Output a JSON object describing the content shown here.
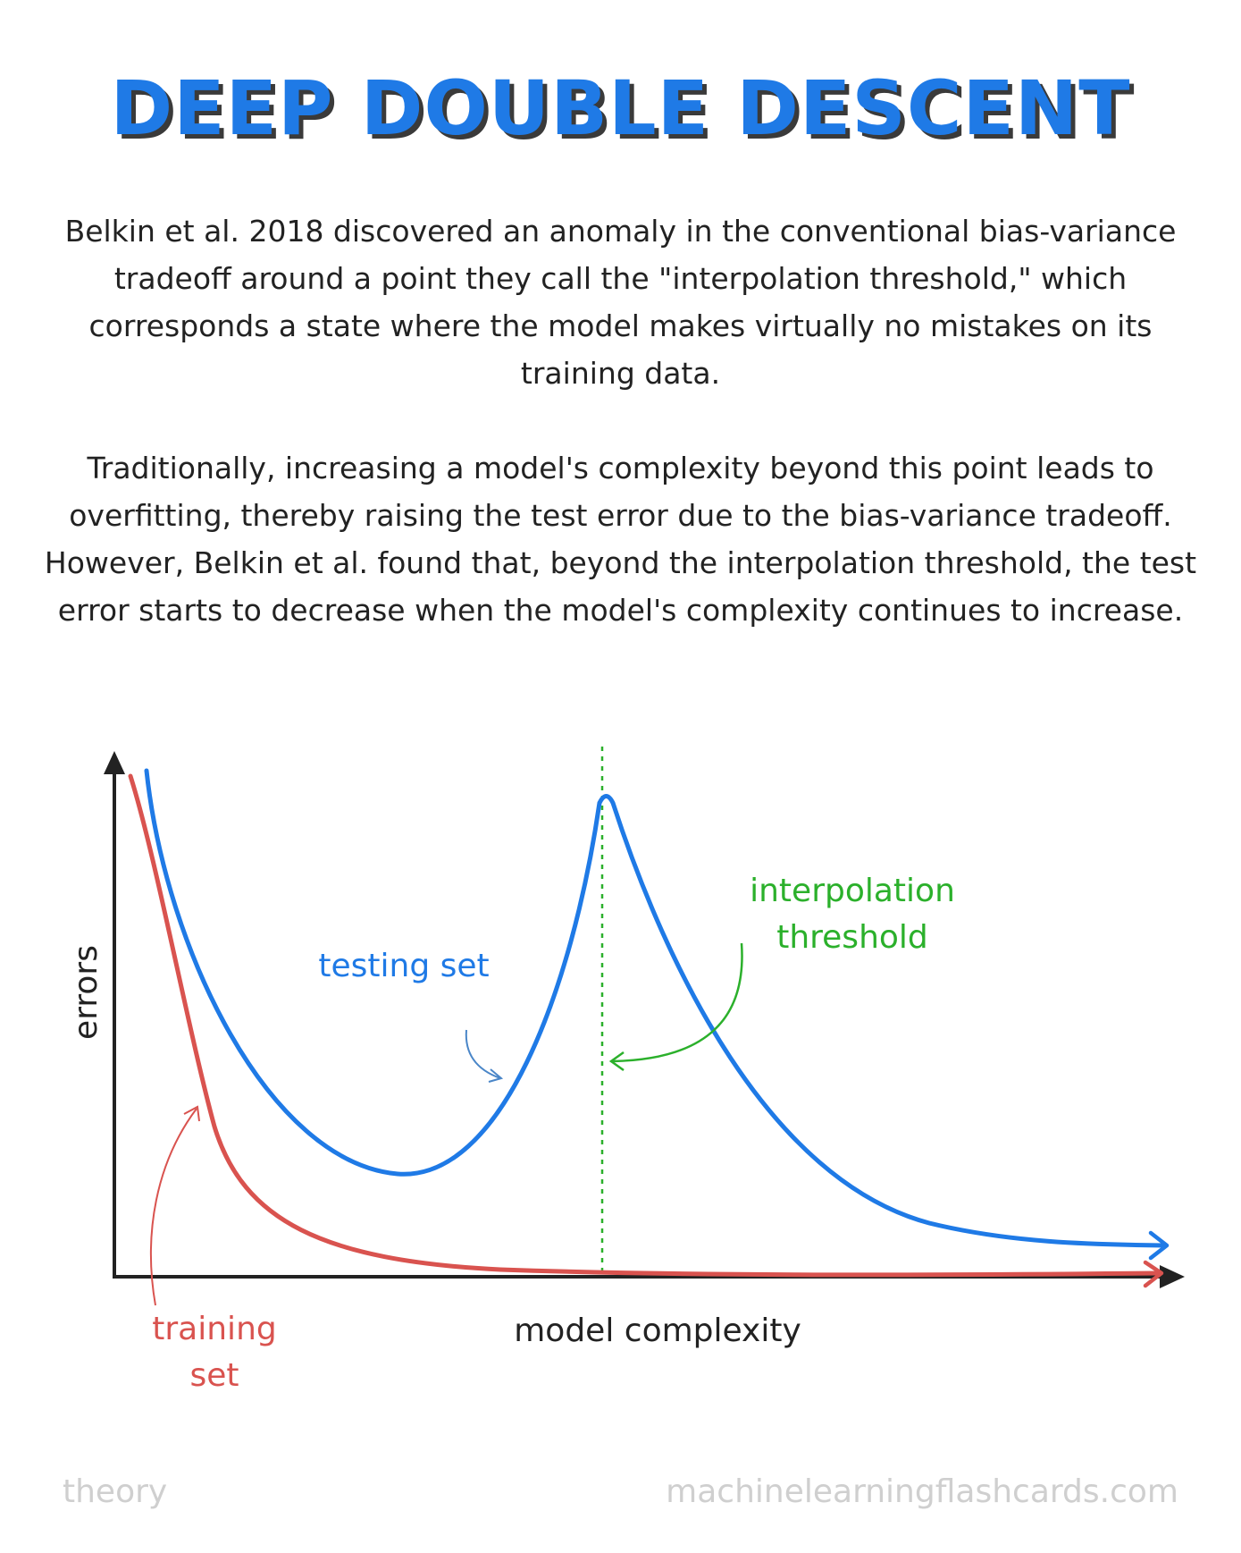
{
  "title": "DEEP DOUBLE DESCENT",
  "paragraphs": [
    "Belkin et al. 2018 discovered an anomaly in the conventional bias-variance tradeoff around a point they call the \"interpolation threshold,\" which corresponds a state where the model makes virtually no mistakes on its training data.",
    "Traditionally, increasing a model's complexity beyond this point leads to overfitting, thereby raising the test error due to the bias-variance tradeoff. However, Belkin et al. found that, beyond the interpolation threshold, the test error starts to decrease when the model's complexity continues to increase."
  ],
  "diagram": {
    "y_axis_label": "errors",
    "x_axis_label": "model complexity",
    "testing_label": "testing set",
    "training_label_lines": [
      "training",
      "set"
    ],
    "threshold_label_lines": [
      "interpolation",
      "threshold"
    ],
    "colors": {
      "testing": "#1f7ae6",
      "training": "#d9534f",
      "threshold": "#2bb02b",
      "axis": "#222222"
    }
  },
  "footer": {
    "left": "theory",
    "right": "machinelearningflashcards.com"
  }
}
